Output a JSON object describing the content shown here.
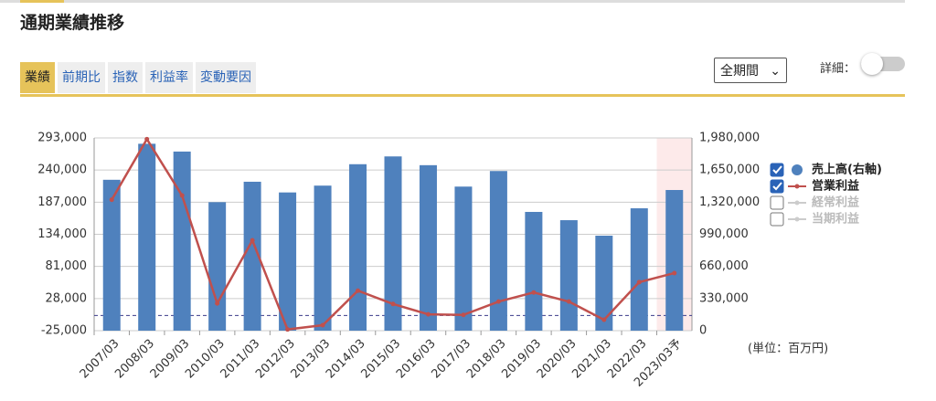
{
  "header": {
    "title": "通期業績推移"
  },
  "tabs": [
    "業績",
    "前期比",
    "指数",
    "利益率",
    "変動要因"
  ],
  "period_select": "全期間",
  "detail_label": "詳細：",
  "unit_note": "(単位：百万円)",
  "legend_disabled": [
    "経常利益",
    "当期利益"
  ],
  "chart_data": {
    "type": "combo",
    "categories": [
      "2007/03",
      "2008/03",
      "2009/03",
      "2010/03",
      "2011/03",
      "2012/03",
      "2013/03",
      "2014/03",
      "2015/03",
      "2016/03",
      "2017/03",
      "2018/03",
      "2019/03",
      "2020/03",
      "2021/03",
      "2022/03",
      "2023/03予"
    ],
    "series": [
      {
        "name": "売上高(右軸)",
        "color": "#4f81bd",
        "type": "bar",
        "axis": "y2",
        "values": [
          1550000,
          1920000,
          1840000,
          1320000,
          1530000,
          1420000,
          1490000,
          1710000,
          1790000,
          1700000,
          1480000,
          1640000,
          1220000,
          1135000,
          976000,
          1257000,
          1445000
        ]
      },
      {
        "name": "営業利益",
        "color": "#c0504d",
        "type": "line",
        "values": [
          191000,
          291000,
          198000,
          20000,
          124000,
          -23000,
          -16000,
          41000,
          19000,
          2000,
          1000,
          23000,
          38000,
          23000,
          -7000,
          55000,
          70000
        ]
      }
    ],
    "ylim": [
      -25000,
      293000
    ],
    "yticks": [
      {
        "value": -25000,
        "label": "-25,000"
      },
      {
        "value": 28000,
        "label": "28,000"
      },
      {
        "value": 81000,
        "label": "81,000"
      },
      {
        "value": 134000,
        "label": "134,000"
      },
      {
        "value": 187000,
        "label": "187,000"
      },
      {
        "value": 240000,
        "label": "240,000"
      },
      {
        "value": 293000,
        "label": "293,000"
      }
    ],
    "y2lim": [
      0,
      1980000
    ],
    "y2ticks": [
      0,
      {
        "value": 330000,
        "label": "330,000"
      },
      {
        "value": 660000,
        "label": "660,000"
      },
      {
        "value": 990000,
        "label": "990,000"
      },
      {
        "value": 1320000,
        "label": "1,320,000"
      },
      {
        "value": 1650000,
        "label": "1,650,000"
      },
      {
        "value": 1980000,
        "label": "1,980,000"
      }
    ],
    "grid": true
  }
}
